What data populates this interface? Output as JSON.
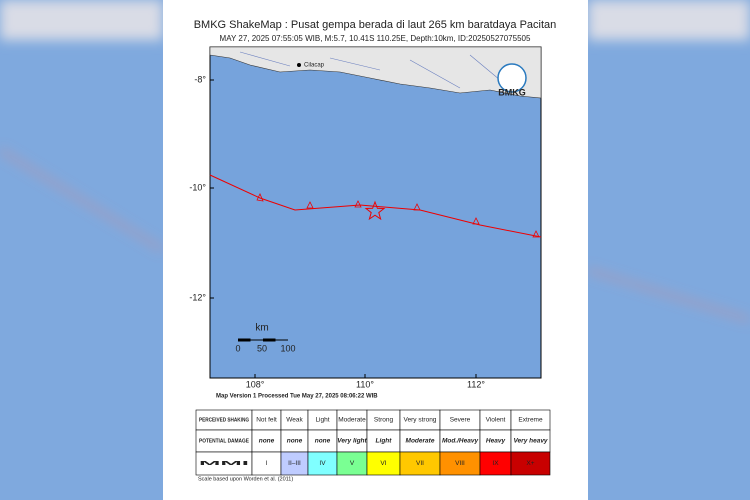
{
  "header": {
    "title": "BMKG ShakeMap : Pusat gempa berada di laut 265 km baratdaya Pacitan",
    "subtitle": "MAY 27, 2025 07:55:05 WIB, M:5.7, 10.41S 110.25E, Depth:10km, ID:20250527075505"
  },
  "map": {
    "lat_labels": [
      "-8°",
      "-10°",
      "-12°"
    ],
    "lon_labels": [
      "108°",
      "110°",
      "112°"
    ],
    "scale_unit": "km",
    "scale_labels": [
      "0",
      "50",
      "100"
    ],
    "place_label": "Cilacap",
    "logo": "BMKG"
  },
  "version_note": "Map Version 1 Processed Tue May 27, 2025 08:06:22 WIB",
  "table": {
    "rows": [
      [
        "PERCEIVED SHAKING",
        "Not felt",
        "Weak",
        "Light",
        "Moderate",
        "Strong",
        "Very strong",
        "Severe",
        "Violent",
        "Extreme"
      ],
      [
        "POTENTIAL DAMAGE",
        "none",
        "none",
        "none",
        "Very light",
        "Light",
        "Moderate",
        "Mod./Heavy",
        "Heavy",
        "Very heavy"
      ],
      [
        "MMI",
        "I",
        "II–III",
        "IV",
        "V",
        "VI",
        "VII",
        "VIII",
        "IX",
        "X+"
      ]
    ]
  },
  "footer": "Scale based upon Worden et al. (2011)"
}
